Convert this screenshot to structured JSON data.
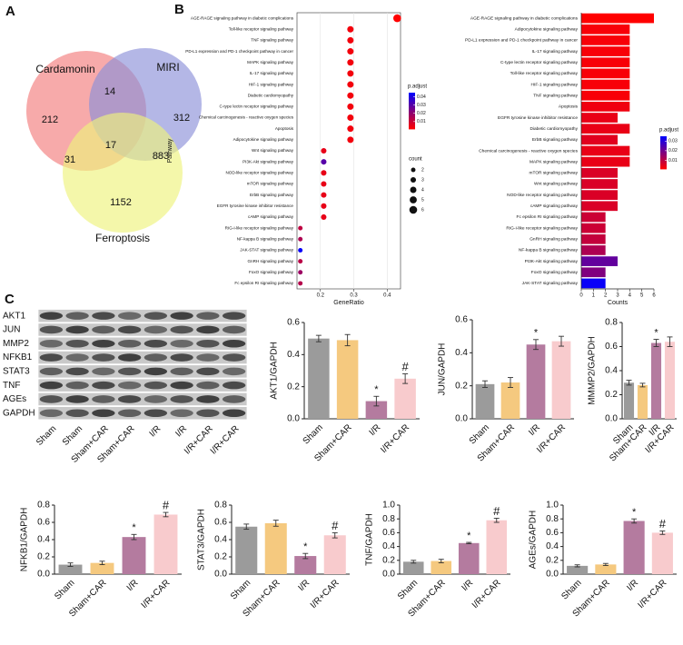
{
  "chart_data": [
    {
      "type": "venn",
      "label": "A",
      "sets": [
        "Cardamonin",
        "MIRI",
        "Ferroptosis"
      ],
      "set_colors": [
        "#f27d7d",
        "#8c90d8",
        "#eef37c"
      ],
      "values": [
        212,
        14,
        312,
        17,
        31,
        883,
        1152
      ]
    },
    {
      "type": "dotplot",
      "label": "B",
      "ylabel": "Pathway",
      "xlabel": "GeneRatio",
      "color_label": "p.adjust",
      "size_label": "count",
      "categories": [
        "AGE-RAGE signaling pathway in diabetic complications",
        "Toll-like receptor signaling pathway",
        "TNF signaling pathway",
        "PD-L1 expression and PD-1 checkpoint pathway in cancer",
        "MAPK signaling pathway",
        "IL-17 signaling pathway",
        "HIF-1 signaling pathway",
        "Diabetic cardiomyopathy",
        "C-type lectin receptor signaling pathway",
        "Chemical carcinogenesis - reactive oxygen species",
        "Apoptosis",
        "Adipocytokine signaling pathway",
        "Wnt signaling pathway",
        "PI3K-Akt signaling pathway",
        "NOD-like receptor signaling pathway",
        "mTOR signaling pathway",
        "ErbB signaling pathway",
        "EGFR tyrosine kinase inhibitor resistance",
        "cAMP signaling pathway",
        "RIG-I-like receptor signaling pathway",
        "NF-kappa B signaling pathway",
        "JAK-STAT signaling pathway",
        "GnRH signaling pathway",
        "FoxO signaling pathway",
        "Fc epsilon RI signaling pathway"
      ],
      "values": [
        0.43,
        0.29,
        0.29,
        0.29,
        0.29,
        0.29,
        0.29,
        0.29,
        0.29,
        0.29,
        0.29,
        0.29,
        0.21,
        0.21,
        0.21,
        0.21,
        0.21,
        0.21,
        0.21,
        0.14,
        0.14,
        0.14,
        0.14,
        0.14,
        0.14
      ],
      "sizes": [
        6,
        4,
        4,
        4,
        4,
        4,
        4,
        4,
        4,
        4,
        4,
        4,
        3,
        3,
        3,
        3,
        3,
        3,
        3,
        2,
        2,
        2,
        2,
        2,
        2
      ],
      "color_values": [
        0.001,
        0.003,
        0.003,
        0.003,
        0.003,
        0.003,
        0.003,
        0.003,
        0.003,
        0.003,
        0.003,
        0.003,
        0.005,
        0.03,
        0.005,
        0.005,
        0.005,
        0.005,
        0.005,
        0.012,
        0.015,
        0.044,
        0.013,
        0.018,
        0.014
      ],
      "xlim": [
        0.13,
        0.44
      ],
      "xticks": [
        0.2,
        0.3,
        0.4
      ],
      "cmap": [
        "#ff0000",
        "#0000ff"
      ],
      "clim": [
        0.001,
        0.045
      ],
      "cticks": [
        0.01,
        0.02,
        0.03,
        0.04
      ],
      "size_ticks": [
        2,
        3,
        4,
        5,
        6
      ],
      "grid": true
    },
    {
      "type": "barh",
      "xlabel": "Counts",
      "color_label": "p.adjust",
      "categories": [
        "AGE-RAGE signaling pathway in diabetic complications",
        "Adipocytokine signaling pathway",
        "PD-L1 expression and PD-1 checkpoint pathway in cancer",
        "IL-17 signaling pathway",
        "C-type lectin receptor signaling pathway",
        "Toll-like receptor signaling pathway",
        "HIF-1 signaling pathway",
        "TNF signaling pathway",
        "Apoptosis",
        "EGFR tyrosine kinase inhibitor resistance",
        "Diabetic cardiomyopathy",
        "ErbB signaling pathway",
        "Chemical carcinogenesis - reactive oxygen species",
        "MAPK signaling pathway",
        "mTOR signaling pathway",
        "Wnt signaling pathway",
        "NOD-like receptor signaling pathway",
        "cAMP signaling pathway",
        "Fc epsilon RI signaling pathway",
        "RIG-I-like receptor signaling pathway",
        "GnRH signaling pathway",
        "NF-kappa B signaling pathway",
        "PI3K-Akt signaling pathway",
        "FoxO signaling pathway",
        "JAK-STAT signaling pathway"
      ],
      "values": [
        6,
        4,
        4,
        4,
        4,
        4,
        4,
        4,
        4,
        3,
        4,
        3,
        4,
        4,
        3,
        3,
        3,
        3,
        2,
        2,
        2,
        2,
        3,
        2,
        2
      ],
      "color_values": [
        0.001,
        0.002,
        0.002,
        0.002,
        0.002,
        0.002,
        0.002,
        0.002,
        0.003,
        0.004,
        0.004,
        0.005,
        0.004,
        0.004,
        0.006,
        0.006,
        0.006,
        0.006,
        0.008,
        0.008,
        0.009,
        0.012,
        0.022,
        0.018,
        0.034
      ],
      "xlim": [
        0,
        6
      ],
      "xticks": [
        0,
        1,
        2,
        3,
        4,
        5,
        6
      ],
      "cmap": [
        "#ff0000",
        "#0000ff"
      ],
      "clim": [
        0.001,
        0.035
      ],
      "cticks": [
        0.01,
        0.02,
        0.03
      ]
    },
    {
      "type": "bar",
      "ylabel": "AKT1/GAPDH",
      "categories": [
        "Sham",
        "Sham+CAR",
        "I/R",
        "I/R+CAR"
      ],
      "colors": [
        "#9b9b9b",
        "#f5c97f",
        "#b47b9f",
        "#f8cbcd"
      ],
      "values": [
        0.5,
        0.49,
        0.11,
        0.25
      ],
      "errors": [
        0.02,
        0.035,
        0.03,
        0.03
      ],
      "markers": [
        null,
        null,
        "*",
        "#"
      ],
      "ylim": [
        0,
        0.6
      ],
      "yticks": [
        {
          "value": 0,
          "label": "0.0"
        },
        0.2,
        0.4,
        0.6
      ]
    },
    {
      "type": "bar",
      "ylabel": "JUN/GAPDH",
      "categories": [
        "Sham",
        "Sham+CAR",
        "I/R",
        "I/R+CAR"
      ],
      "colors": [
        "#9b9b9b",
        "#f5c97f",
        "#b47b9f",
        "#f8cbcd"
      ],
      "values": [
        0.21,
        0.22,
        0.45,
        0.47
      ],
      "errors": [
        0.02,
        0.03,
        0.03,
        0.03
      ],
      "markers": [
        null,
        null,
        "*",
        null
      ],
      "ylim": [
        0,
        0.6
      ],
      "yticks": [
        {
          "value": 0,
          "label": "0.0"
        },
        0.2,
        0.4,
        0.6
      ]
    },
    {
      "type": "bar",
      "ylabel": "MMMP2/GAPDH",
      "categories": [
        "Sham",
        "Sham+CAR",
        "I/R",
        "I/R+CAR"
      ],
      "colors": [
        "#9b9b9b",
        "#f5c97f",
        "#b47b9f",
        "#f8cbcd"
      ],
      "values": [
        0.3,
        0.28,
        0.63,
        0.64
      ],
      "errors": [
        0.02,
        0.015,
        0.03,
        0.04
      ],
      "markers": [
        null,
        null,
        "*",
        null
      ],
      "ylim": [
        0,
        0.8
      ],
      "yticks": [
        {
          "value": 0,
          "label": "0.0"
        },
        0.2,
        0.4,
        0.6,
        0.8
      ]
    },
    {
      "type": "bar",
      "ylabel": "NFKB1/GAPDH",
      "categories": [
        "Sham",
        "Sham+CAR",
        "I/R",
        "I/R+CAR"
      ],
      "colors": [
        "#9b9b9b",
        "#f5c97f",
        "#b47b9f",
        "#f8cbcd"
      ],
      "values": [
        0.11,
        0.13,
        0.43,
        0.69
      ],
      "errors": [
        0.02,
        0.02,
        0.03,
        0.025
      ],
      "markers": [
        null,
        null,
        "*",
        "#"
      ],
      "ylim": [
        0,
        0.8
      ],
      "yticks": [
        {
          "value": 0,
          "label": "0.0"
        },
        0.2,
        0.4,
        0.6,
        0.8
      ]
    },
    {
      "type": "bar",
      "ylabel": "STAT3/GAPDH",
      "categories": [
        "Sham",
        "Sham+CAR",
        "I/R",
        "I/R+CAR"
      ],
      "colors": [
        "#9b9b9b",
        "#f5c97f",
        "#b47b9f",
        "#f8cbcd"
      ],
      "values": [
        0.55,
        0.59,
        0.21,
        0.45
      ],
      "errors": [
        0.03,
        0.035,
        0.03,
        0.03
      ],
      "markers": [
        null,
        null,
        "*",
        "#"
      ],
      "ylim": [
        0,
        0.8
      ],
      "yticks": [
        {
          "value": 0,
          "label": "0.0"
        },
        0.2,
        0.4,
        0.6,
        0.8
      ]
    },
    {
      "type": "bar",
      "ylabel": "TNF/GAPDH",
      "categories": [
        "Sham",
        "Sham+CAR",
        "I/R",
        "I/R+CAR"
      ],
      "colors": [
        "#9b9b9b",
        "#f5c97f",
        "#b47b9f",
        "#f8cbcd"
      ],
      "values": [
        0.18,
        0.19,
        0.45,
        0.78
      ],
      "errors": [
        0.02,
        0.025,
        0.01,
        0.03
      ],
      "markers": [
        null,
        null,
        "*",
        "#"
      ],
      "ylim": [
        0,
        1
      ],
      "yticks": [
        {
          "value": 0,
          "label": "0.0"
        },
        0.2,
        0.4,
        0.6,
        0.8,
        {
          "value": 1,
          "label": "1.0"
        }
      ]
    },
    {
      "type": "bar",
      "ylabel": "AGEs/GAPDH",
      "categories": [
        "Sham",
        "Sham+CAR",
        "I/R",
        "I/R+CAR"
      ],
      "colors": [
        "#9b9b9b",
        "#f5c97f",
        "#b47b9f",
        "#f8cbcd"
      ],
      "values": [
        0.12,
        0.14,
        0.77,
        0.6
      ],
      "errors": [
        0.015,
        0.015,
        0.03,
        0.025
      ],
      "markers": [
        null,
        null,
        "*",
        "#"
      ],
      "ylim": [
        0,
        1
      ],
      "yticks": [
        {
          "value": 0,
          "label": "0.0"
        },
        0.2,
        0.4,
        0.6,
        0.8,
        {
          "value": 1,
          "label": "1.0"
        }
      ]
    }
  ],
  "blot": {
    "label": "C",
    "proteins": [
      "AKT1",
      "JUN",
      "MMP2",
      "NFKB1",
      "STAT3",
      "TNF",
      "AGEs",
      "GAPDH"
    ],
    "lanes": [
      "Sham",
      "Sham",
      "Sham+CAR",
      "Sham+CAR",
      "I/R",
      "I/R",
      "I/R+CAR",
      "I/R+CAR"
    ]
  }
}
